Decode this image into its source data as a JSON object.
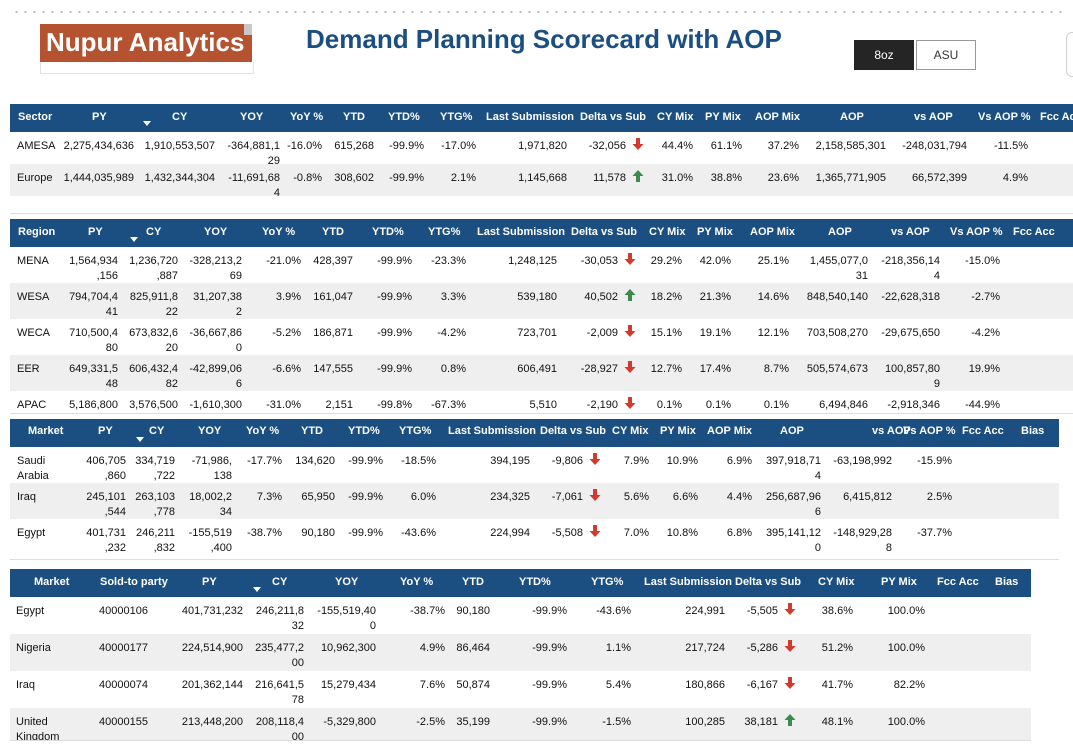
{
  "brand": {
    "logo_text": "Nupur Analytics"
  },
  "title": "Demand Planning Scorecard with AOP",
  "toggle": {
    "options": [
      "8oz",
      "ASU"
    ],
    "selected": "8oz"
  },
  "colors": {
    "header_bg": "#1b4f82",
    "brand": "#b5522f",
    "up": "#3b8c4b",
    "down": "#d23a2e",
    "row_alt": "#efefef"
  },
  "sector_table": {
    "columns": [
      "Sector",
      "PY",
      "CY",
      "YOY",
      "YoY %",
      "YTD",
      "YTD%",
      "YTG%",
      "Last Submission",
      "Delta vs Sub",
      "CY Mix",
      "PY Mix",
      "AOP Mix",
      "AOP",
      "vs AOP",
      "Vs AOP %",
      "Fcc Acc"
    ],
    "rows": [
      {
        "name": "AMESA",
        "py": "2,275,434,636",
        "cy": "1,910,553,507",
        "yoy": "-364,881,1\n29",
        "yoy_pct": "-16.0%",
        "ytd": "615,268",
        "ytd_pct": "-99.9%",
        "ytg_pct": "-17.0%",
        "last_sub": "1,971,820",
        "delta": "-32,056",
        "dir": "down",
        "cy_mix": "44.4%",
        "py_mix": "61.1%",
        "aop_mix": "37.2%",
        "aop": "2,158,585,301",
        "vs_aop": "-248,031,794",
        "vs_aop_pct": "-11.5%"
      },
      {
        "name": "Europe",
        "py": "1,444,035,989",
        "cy": "1,432,344,304",
        "yoy": "-11,691,68\n4",
        "yoy_pct": "-0.8%",
        "ytd": "308,602",
        "ytd_pct": "-99.9%",
        "ytg_pct": "2.1%",
        "last_sub": "1,145,668",
        "delta": "11,578",
        "dir": "up",
        "cy_mix": "31.0%",
        "py_mix": "38.8%",
        "aop_mix": "23.6%",
        "aop": "1,365,771,905",
        "vs_aop": "66,572,399",
        "vs_aop_pct": "4.9%"
      }
    ]
  },
  "region_table": {
    "columns": [
      "Region",
      "PY",
      "CY",
      "YOY",
      "YoY %",
      "YTD",
      "YTD%",
      "YTG%",
      "Last Submission",
      "Delta vs Sub",
      "CY Mix",
      "PY Mix",
      "AOP Mix",
      "AOP",
      "vs AOP",
      "Vs AOP %",
      "Fcc Acc"
    ],
    "rows": [
      {
        "name": "MENA",
        "py": "1,564,934\n,156",
        "cy": "1,236,720\n,887",
        "yoy": "-328,213,2\n69",
        "yoy_pct": "-21.0%",
        "ytd": "428,397",
        "ytd_pct": "-99.9%",
        "ytg_pct": "-23.3%",
        "last_sub": "1,248,125",
        "delta": "-30,053",
        "dir": "down",
        "cy_mix": "29.2%",
        "py_mix": "42.0%",
        "aop_mix": "25.1%",
        "aop": "1,455,077,0\n31",
        "vs_aop": "-218,356,14\n4",
        "vs_aop_pct": "-15.0%"
      },
      {
        "name": "WESA",
        "py": "794,704,4\n41",
        "cy": "825,911,8\n22",
        "yoy": "31,207,38\n2",
        "yoy_pct": "3.9%",
        "ytd": "161,047",
        "ytd_pct": "-99.9%",
        "ytg_pct": "3.3%",
        "last_sub": "539,180",
        "delta": "40,502",
        "dir": "up",
        "cy_mix": "18.2%",
        "py_mix": "21.3%",
        "aop_mix": "14.6%",
        "aop": "848,540,140",
        "vs_aop": "-22,628,318",
        "vs_aop_pct": "-2.7%"
      },
      {
        "name": "WECA",
        "py": "710,500,4\n80",
        "cy": "673,832,6\n20",
        "yoy": "-36,667,86\n0",
        "yoy_pct": "-5.2%",
        "ytd": "186,871",
        "ytd_pct": "-99.9%",
        "ytg_pct": "-4.2%",
        "last_sub": "723,701",
        "delta": "-2,009",
        "dir": "down",
        "cy_mix": "15.1%",
        "py_mix": "19.1%",
        "aop_mix": "12.1%",
        "aop": "703,508,270",
        "vs_aop": "-29,675,650",
        "vs_aop_pct": "-4.2%"
      },
      {
        "name": "EER",
        "py": "649,331,5\n48",
        "cy": "606,432,4\n82",
        "yoy": "-42,899,06\n6",
        "yoy_pct": "-6.6%",
        "ytd": "147,555",
        "ytd_pct": "-99.9%",
        "ytg_pct": "0.8%",
        "last_sub": "606,491",
        "delta": "-28,927",
        "dir": "down",
        "cy_mix": "12.7%",
        "py_mix": "17.4%",
        "aop_mix": "8.7%",
        "aop": "505,574,673",
        "vs_aop": "100,857,80\n9",
        "vs_aop_pct": "19.9%"
      },
      {
        "name": "APAC",
        "py": "5,186,800",
        "cy": "3,576,500",
        "yoy": "-1,610,300",
        "yoy_pct": "-31.0%",
        "ytd": "2,151",
        "ytd_pct": "-99.8%",
        "ytg_pct": "-67.3%",
        "last_sub": "5,510",
        "delta": "-2,190",
        "dir": "down",
        "cy_mix": "0.1%",
        "py_mix": "0.1%",
        "aop_mix": "0.1%",
        "aop": "6,494,846",
        "vs_aop": "-2,918,346",
        "vs_aop_pct": "-44.9%"
      }
    ]
  },
  "market_table": {
    "columns": [
      "Market",
      "PY",
      "CY",
      "YOY",
      "YoY %",
      "YTD",
      "YTD%",
      "YTG%",
      "Last Submission",
      "Delta vs Sub",
      "CY Mix",
      "PY Mix",
      "AOP Mix",
      "AOP",
      "vs AOP",
      "Vs AOP %",
      "Fcc Acc",
      "Bias"
    ],
    "rows": [
      {
        "name": "Saudi\nArabia",
        "py": "406,705\n,860",
        "cy": "334,719\n,722",
        "yoy": "-71,986,\n138",
        "yoy_pct": "-17.7%",
        "ytd": "134,620",
        "ytd_pct": "-99.9%",
        "ytg_pct": "-18.5%",
        "last_sub": "394,195",
        "delta": "-9,806",
        "dir": "down",
        "cy_mix": "7.9%",
        "py_mix": "10.9%",
        "aop_mix": "6.9%",
        "aop": "397,918,71\n4",
        "vs_aop": "-63,198,992",
        "vs_aop_pct": "-15.9%"
      },
      {
        "name": "Iraq",
        "py": "245,101\n,544",
        "cy": "263,103\n,778",
        "yoy": "18,002,2\n34",
        "yoy_pct": "7.3%",
        "ytd": "65,950",
        "ytd_pct": "-99.9%",
        "ytg_pct": "6.0%",
        "last_sub": "234,325",
        "delta": "-7,061",
        "dir": "down",
        "cy_mix": "5.6%",
        "py_mix": "6.6%",
        "aop_mix": "4.4%",
        "aop": "256,687,96\n6",
        "vs_aop": "6,415,812",
        "vs_aop_pct": "2.5%"
      },
      {
        "name": "Egypt",
        "py": "401,731\n,232",
        "cy": "246,211\n,832",
        "yoy": "-155,519\n,400",
        "yoy_pct": "-38.7%",
        "ytd": "90,180",
        "ytd_pct": "-99.9%",
        "ytg_pct": "-43.6%",
        "last_sub": "224,994",
        "delta": "-5,508",
        "dir": "down",
        "cy_mix": "7.0%",
        "py_mix": "10.8%",
        "aop_mix": "6.8%",
        "aop": "395,141,12\n0",
        "vs_aop": "-148,929,28\n8",
        "vs_aop_pct": "-37.7%"
      }
    ]
  },
  "soldto_table": {
    "columns": [
      "Market",
      "Sold-to party",
      "PY",
      "CY",
      "YOY",
      "YoY %",
      "YTD",
      "YTD%",
      "YTG%",
      "Last Submission",
      "Delta vs Sub",
      "CY Mix",
      "PY Mix",
      "Fcc Acc",
      "Bias"
    ],
    "rows": [
      {
        "name": "Egypt",
        "party": "40000106",
        "py": "401,731,232",
        "cy": "246,211,8\n32",
        "yoy": "-155,519,40\n0",
        "yoy_pct": "-38.7%",
        "ytd": "90,180",
        "ytd_pct": "-99.9%",
        "ytg_pct": "-43.6%",
        "last_sub": "224,991",
        "delta": "-5,505",
        "dir": "down",
        "cy_mix": "38.6%",
        "py_mix": "100.0%"
      },
      {
        "name": "Nigeria",
        "party": "40000177",
        "py": "224,514,900",
        "cy": "235,477,2\n00",
        "yoy": "10,962,300",
        "yoy_pct": "4.9%",
        "ytd": "86,464",
        "ytd_pct": "-99.9%",
        "ytg_pct": "1.1%",
        "last_sub": "217,724",
        "delta": "-5,286",
        "dir": "down",
        "cy_mix": "51.2%",
        "py_mix": "100.0%"
      },
      {
        "name": "Iraq",
        "party": "40000074",
        "py": "201,362,144",
        "cy": "216,641,5\n78",
        "yoy": "15,279,434",
        "yoy_pct": "7.6%",
        "ytd": "50,874",
        "ytd_pct": "-99.9%",
        "ytg_pct": "5.4%",
        "last_sub": "180,866",
        "delta": "-6,167",
        "dir": "down",
        "cy_mix": "41.7%",
        "py_mix": "82.2%"
      },
      {
        "name": "United\nKingdom",
        "party": "40000155",
        "py": "213,448,200",
        "cy": "208,118,4\n00",
        "yoy": "-5,329,800",
        "yoy_pct": "-2.5%",
        "ytd": "35,199",
        "ytd_pct": "-99.9%",
        "ytg_pct": "-1.5%",
        "last_sub": "100,285",
        "delta": "38,181",
        "dir": "up",
        "cy_mix": "48.1%",
        "py_mix": "100.0%"
      }
    ]
  }
}
